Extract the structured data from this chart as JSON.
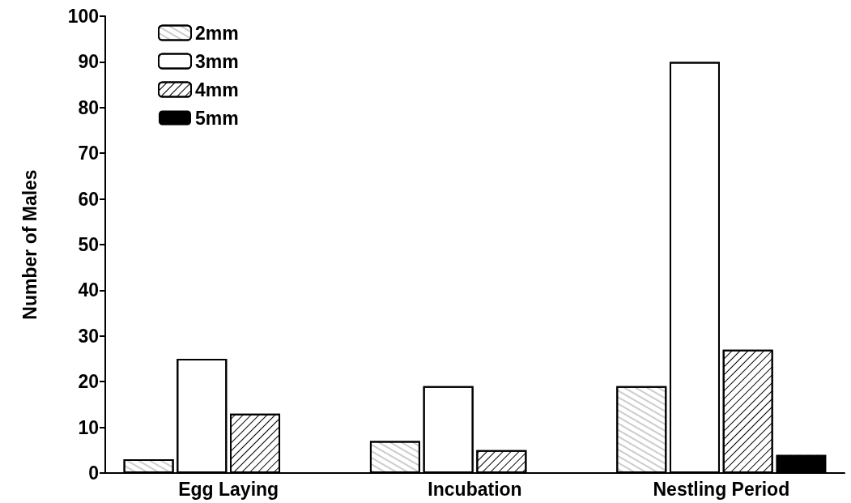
{
  "chart_data": {
    "type": "bar",
    "ylabel": "Number of Males",
    "categories": [
      "Egg Laying",
      "Incubation",
      "Nestling Period"
    ],
    "series": [
      {
        "name": "2mm",
        "color": "#ffffff",
        "values": [
          3,
          7,
          19
        ]
      },
      {
        "name": "3mm",
        "color": "#ffffff",
        "values": [
          25,
          19,
          90
        ]
      },
      {
        "name": "4mm",
        "color": "#ffffff",
        "values": [
          13,
          5,
          27
        ]
      },
      {
        "name": "5mm",
        "color": "#000000",
        "values": [
          null,
          null,
          4
        ]
      }
    ],
    "ylim": [
      0,
      100
    ],
    "yticks": [
      0,
      10,
      20,
      30,
      40,
      50,
      60,
      70,
      80,
      90,
      100
    ],
    "legend": "top left",
    "grid": false
  }
}
